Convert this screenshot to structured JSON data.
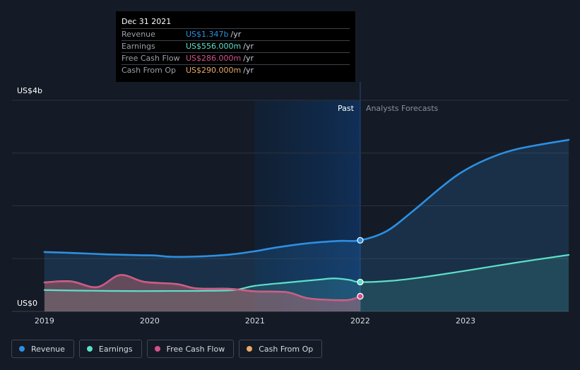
{
  "chart_data": {
    "type": "area",
    "title": "",
    "y_unit_label": "US$4b",
    "y_zero_label": "US$0",
    "ylim": [
      0,
      4000
    ],
    "xlim": [
      2018.9,
      2023.98
    ],
    "x_ticks": [
      {
        "value": 2019,
        "label": "2019"
      },
      {
        "value": 2020,
        "label": "2020"
      },
      {
        "value": 2021,
        "label": "2021"
      },
      {
        "value": 2022,
        "label": "2022"
      },
      {
        "value": 2023,
        "label": "2023"
      }
    ],
    "past_label": "Past",
    "forecast_label": "Analysts Forecasts",
    "divider_x": 2022.0,
    "past_shade_start": 2021.0,
    "series": [
      {
        "name": "Revenue",
        "color": "#2d8fe2",
        "x": [
          2019.0,
          2019.3,
          2019.6,
          2019.9,
          2020.05,
          2020.2,
          2020.45,
          2020.75,
          2021.0,
          2021.2,
          2021.5,
          2021.8,
          2022.0,
          2022.25,
          2022.5,
          2022.75,
          2022.95,
          2023.2,
          2023.5,
          2023.98
        ],
        "y": [
          1125,
          1105,
          1080,
          1065,
          1060,
          1035,
          1040,
          1075,
          1140,
          1210,
          1290,
          1335,
          1347,
          1520,
          1900,
          2320,
          2620,
          2880,
          3080,
          3250
        ]
      },
      {
        "name": "Earnings",
        "color": "#5ee0c8",
        "x": [
          2019.0,
          2019.3,
          2019.6,
          2019.9,
          2020.2,
          2020.5,
          2020.8,
          2021.0,
          2021.3,
          2021.6,
          2021.75,
          2021.9,
          2022.0,
          2022.3,
          2022.6,
          2023.0,
          2023.5,
          2023.98
        ],
        "y": [
          405,
          395,
          388,
          385,
          387,
          390,
          405,
          485,
          545,
          600,
          625,
          595,
          556,
          580,
          650,
          770,
          930,
          1070
        ]
      },
      {
        "name": "Free Cash Flow",
        "color": "#d2528b",
        "x": [
          2019.0,
          2019.25,
          2019.5,
          2019.72,
          2019.95,
          2020.25,
          2020.45,
          2020.75,
          2021.0,
          2021.3,
          2021.5,
          2021.75,
          2021.9,
          2022.0
        ],
        "y": [
          545,
          565,
          455,
          685,
          555,
          515,
          430,
          425,
          375,
          360,
          245,
          210,
          215,
          286
        ]
      },
      {
        "name": "Cash From Op",
        "color": "#e8a96a",
        "x": [
          2019.0,
          2019.25,
          2019.5,
          2019.72,
          2019.95,
          2020.25,
          2020.45,
          2020.75,
          2021.0,
          2021.3,
          2021.5,
          2021.75,
          2021.9,
          2022.0
        ],
        "y": [
          550,
          570,
          460,
          690,
          560,
          520,
          435,
          430,
          380,
          365,
          250,
          215,
          220,
          290
        ]
      }
    ]
  },
  "tooltip": {
    "date": "Dec 31 2021",
    "rows": [
      {
        "label": "Revenue",
        "value": "US$1.347b",
        "unit": "/yr",
        "color": "#2d8fe2"
      },
      {
        "label": "Earnings",
        "value": "US$556.000m",
        "unit": "/yr",
        "color": "#5ee0c8"
      },
      {
        "label": "Free Cash Flow",
        "value": "US$286.000m",
        "unit": "/yr",
        "color": "#d2528b"
      },
      {
        "label": "Cash From Op",
        "value": "US$290.000m",
        "unit": "/yr",
        "color": "#e8a96a"
      }
    ]
  },
  "legend": [
    {
      "label": "Revenue",
      "color": "#2d8fe2"
    },
    {
      "label": "Earnings",
      "color": "#5ee0c8"
    },
    {
      "label": "Free Cash Flow",
      "color": "#d2528b"
    },
    {
      "label": "Cash From Op",
      "color": "#e8a96a"
    }
  ]
}
